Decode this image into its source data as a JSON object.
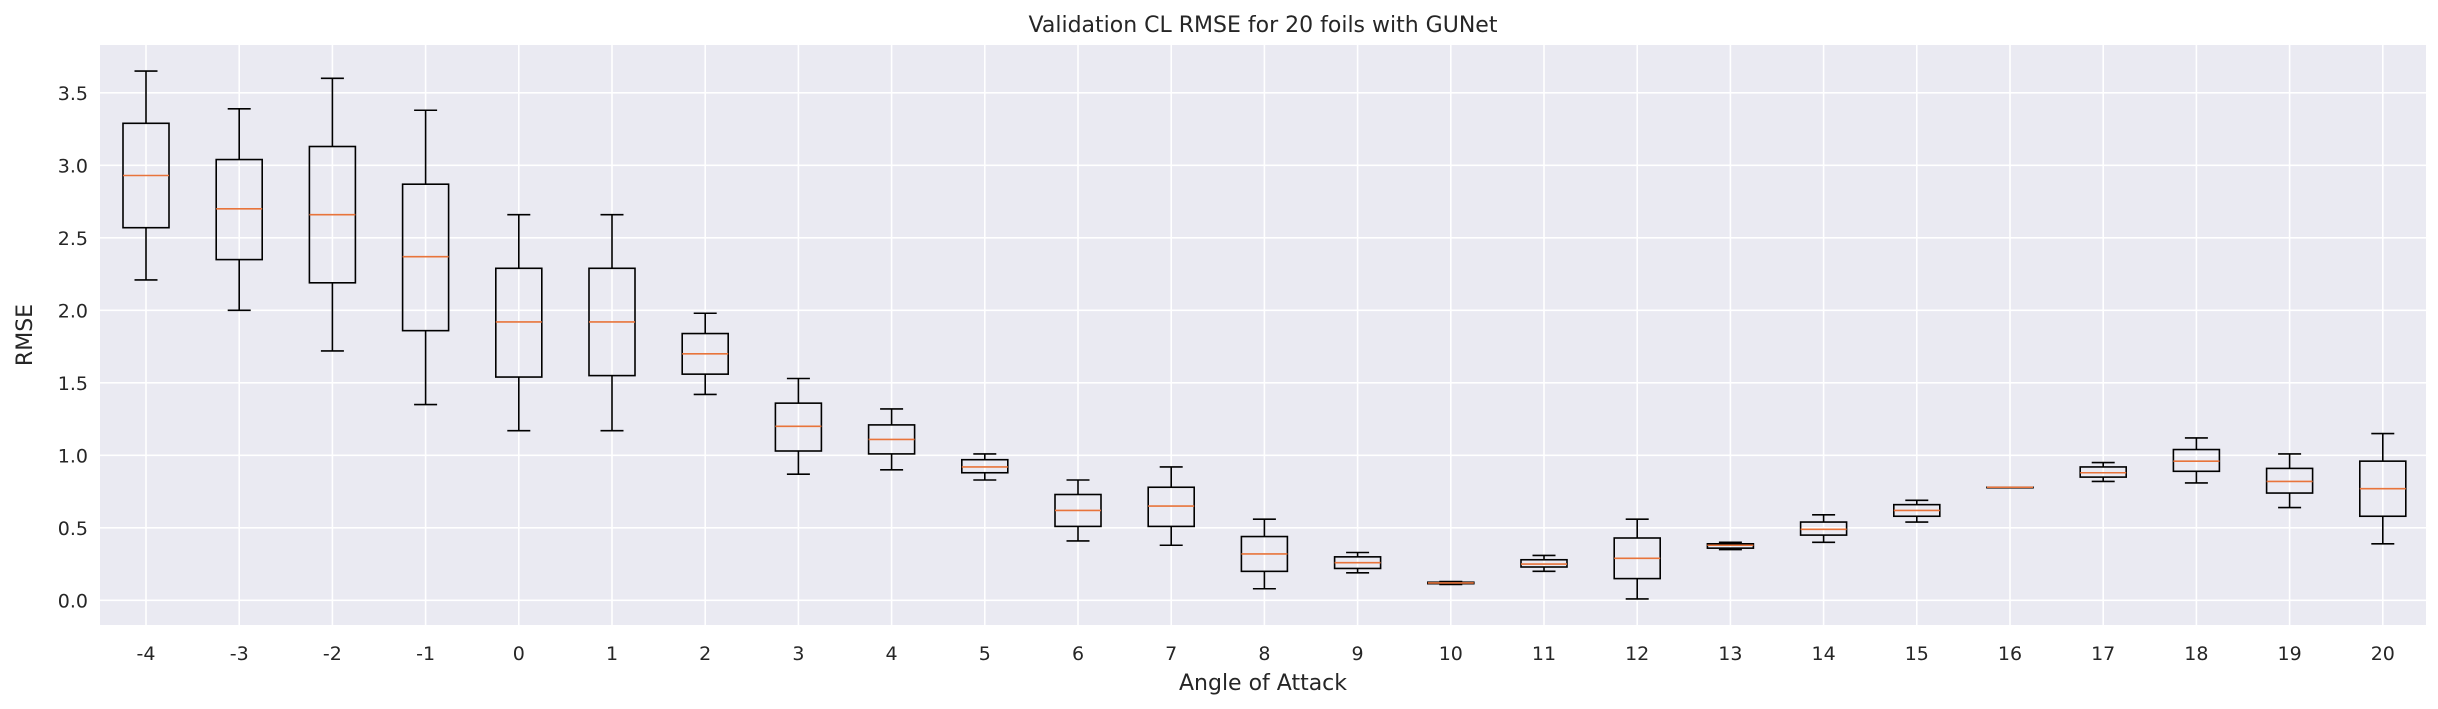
{
  "chart_data": {
    "type": "box",
    "title": "Validation CL RMSE for 20 foils with GUNet",
    "xlabel": "Angle of Attack",
    "ylabel": "RMSE",
    "ylim": [
      -0.17,
      3.83
    ],
    "yticks": [
      0.0,
      0.5,
      1.0,
      1.5,
      2.0,
      2.5,
      3.0,
      3.5
    ],
    "ytick_labels": [
      "0.0",
      "0.5",
      "1.0",
      "1.5",
      "2.0",
      "2.5",
      "3.0",
      "3.5"
    ],
    "grid": true,
    "colors": {
      "background": "#eaeaf2",
      "grid": "#ffffff",
      "box": "#000000",
      "median": "#e8743b"
    },
    "categories": [
      "-4",
      "-3",
      "-2",
      "-1",
      "0",
      "1",
      "2",
      "3",
      "4",
      "5",
      "6",
      "7",
      "8",
      "9",
      "10",
      "11",
      "12",
      "13",
      "14",
      "15",
      "16",
      "17",
      "18",
      "19",
      "20"
    ],
    "boxes": [
      {
        "whislo": 2.21,
        "q1": 2.57,
        "med": 2.93,
        "q3": 3.29,
        "whishi": 3.65
      },
      {
        "whislo": 2.0,
        "q1": 2.35,
        "med": 2.7,
        "q3": 3.04,
        "whishi": 3.39
      },
      {
        "whislo": 1.72,
        "q1": 2.19,
        "med": 2.66,
        "q3": 3.13,
        "whishi": 3.6
      },
      {
        "whislo": 1.35,
        "q1": 1.86,
        "med": 2.37,
        "q3": 2.87,
        "whishi": 3.38
      },
      {
        "whislo": 1.17,
        "q1": 1.54,
        "med": 1.92,
        "q3": 2.29,
        "whishi": 2.66
      },
      {
        "whislo": 1.17,
        "q1": 1.55,
        "med": 1.92,
        "q3": 2.29,
        "whishi": 2.66
      },
      {
        "whislo": 1.42,
        "q1": 1.56,
        "med": 1.7,
        "q3": 1.84,
        "whishi": 1.98
      },
      {
        "whislo": 0.87,
        "q1": 1.03,
        "med": 1.2,
        "q3": 1.36,
        "whishi": 1.53
      },
      {
        "whislo": 0.9,
        "q1": 1.01,
        "med": 1.11,
        "q3": 1.21,
        "whishi": 1.32
      },
      {
        "whislo": 0.83,
        "q1": 0.88,
        "med": 0.92,
        "q3": 0.97,
        "whishi": 1.01
      },
      {
        "whislo": 0.41,
        "q1": 0.51,
        "med": 0.62,
        "q3": 0.73,
        "whishi": 0.83
      },
      {
        "whislo": 0.38,
        "q1": 0.51,
        "med": 0.65,
        "q3": 0.78,
        "whishi": 0.92
      },
      {
        "whislo": 0.08,
        "q1": 0.2,
        "med": 0.32,
        "q3": 0.44,
        "whishi": 0.56
      },
      {
        "whislo": 0.19,
        "q1": 0.22,
        "med": 0.26,
        "q3": 0.3,
        "whishi": 0.33
      },
      {
        "whislo": 0.11,
        "q1": 0.115,
        "med": 0.12,
        "q3": 0.125,
        "whishi": 0.13
      },
      {
        "whislo": 0.2,
        "q1": 0.23,
        "med": 0.25,
        "q3": 0.28,
        "whishi": 0.31
      },
      {
        "whislo": 0.01,
        "q1": 0.15,
        "med": 0.29,
        "q3": 0.43,
        "whishi": 0.56
      },
      {
        "whislo": 0.35,
        "q1": 0.36,
        "med": 0.38,
        "q3": 0.39,
        "whishi": 0.4
      },
      {
        "whislo": 0.4,
        "q1": 0.45,
        "med": 0.49,
        "q3": 0.54,
        "whishi": 0.59
      },
      {
        "whislo": 0.54,
        "q1": 0.58,
        "med": 0.62,
        "q3": 0.66,
        "whishi": 0.69
      },
      {
        "whislo": 0.78,
        "q1": 0.78,
        "med": 0.78,
        "q3": 0.78,
        "whishi": 0.78
      },
      {
        "whislo": 0.82,
        "q1": 0.85,
        "med": 0.88,
        "q3": 0.92,
        "whishi": 0.95
      },
      {
        "whislo": 0.81,
        "q1": 0.89,
        "med": 0.96,
        "q3": 1.04,
        "whishi": 1.12
      },
      {
        "whislo": 0.64,
        "q1": 0.74,
        "med": 0.82,
        "q3": 0.91,
        "whishi": 1.01
      },
      {
        "whislo": 0.39,
        "q1": 0.58,
        "med": 0.77,
        "q3": 0.96,
        "whishi": 1.15
      }
    ]
  }
}
